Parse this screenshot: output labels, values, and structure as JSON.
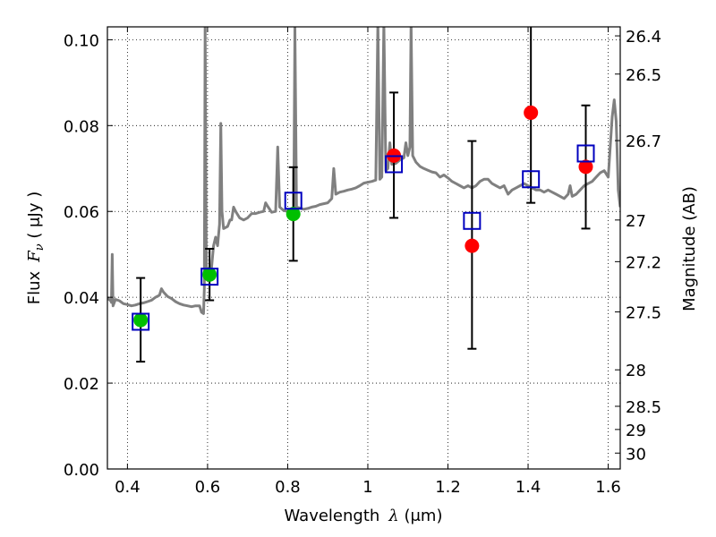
{
  "chart_data": {
    "type": "scatter",
    "title": "",
    "xlabel": "Wavelength",
    "xlabel_math": "λ",
    "xlabel_unit": " (μm)",
    "ylabel": "Flux",
    "ylabel_math": "F",
    "ylabel_sub": "ν",
    "ylabel_unit": " ( μJy )",
    "ylabel_right": "Magnitude (AB)",
    "xlim": [
      0.35,
      1.63
    ],
    "ylim": [
      0.0,
      0.103
    ],
    "xticks": [
      0.4,
      0.6,
      0.8,
      1.0,
      1.2,
      1.4,
      1.6
    ],
    "xtick_labels": [
      "0.4",
      "0.6",
      "0.8",
      "1",
      "1.2",
      "1.4",
      "1.6"
    ],
    "yticks": [
      0.0,
      0.02,
      0.04,
      0.06,
      0.08,
      0.1
    ],
    "ytick_labels": [
      "0.00",
      "0.02",
      "0.04",
      "0.06",
      "0.08",
      "0.10"
    ],
    "right_ticks": [
      {
        "label": "26.4",
        "flux": 0.1009
      },
      {
        "label": "26.5",
        "flux": 0.092
      },
      {
        "label": "26.7",
        "flux": 0.0765
      },
      {
        "label": "27",
        "flux": 0.058
      },
      {
        "label": "27.2",
        "flux": 0.0483
      },
      {
        "label": "27.5",
        "flux": 0.0366
      },
      {
        "label": "28",
        "flux": 0.0231
      },
      {
        "label": "28.5",
        "flux": 0.0146
      },
      {
        "label": "29",
        "flux": 0.0092
      },
      {
        "label": "30",
        "flux": 0.0037
      }
    ],
    "grid": true,
    "colors": {
      "template": "#808080",
      "green": "#00bf00",
      "red": "#ff0000",
      "model": "#0000bf",
      "errorbar": "#000000"
    },
    "template_spectrum": [
      [
        0.35,
        0.04
      ],
      [
        0.354,
        0.0395
      ],
      [
        0.358,
        0.0392
      ],
      [
        0.36,
        0.0388
      ],
      [
        0.362,
        0.05
      ],
      [
        0.364,
        0.038
      ],
      [
        0.37,
        0.0395
      ],
      [
        0.38,
        0.0392
      ],
      [
        0.39,
        0.0385
      ],
      [
        0.4,
        0.0383
      ],
      [
        0.41,
        0.038
      ],
      [
        0.42,
        0.0382
      ],
      [
        0.43,
        0.0385
      ],
      [
        0.44,
        0.0387
      ],
      [
        0.45,
        0.039
      ],
      [
        0.46,
        0.0393
      ],
      [
        0.47,
        0.04
      ],
      [
        0.48,
        0.0405
      ],
      [
        0.485,
        0.042
      ],
      [
        0.49,
        0.0412
      ],
      [
        0.5,
        0.0402
      ],
      [
        0.51,
        0.0397
      ],
      [
        0.52,
        0.039
      ],
      [
        0.53,
        0.0385
      ],
      [
        0.54,
        0.0382
      ],
      [
        0.55,
        0.038
      ],
      [
        0.56,
        0.0378
      ],
      [
        0.57,
        0.038
      ],
      [
        0.58,
        0.038
      ],
      [
        0.585,
        0.0365
      ],
      [
        0.59,
        0.0362
      ],
      [
        0.592,
        0.042
      ],
      [
        0.594,
        0.104
      ],
      [
        0.597,
        0.045
      ],
      [
        0.6,
        0.045
      ],
      [
        0.61,
        0.047
      ],
      [
        0.615,
        0.052
      ],
      [
        0.62,
        0.054
      ],
      [
        0.625,
        0.052
      ],
      [
        0.63,
        0.057
      ],
      [
        0.633,
        0.0805
      ],
      [
        0.636,
        0.06
      ],
      [
        0.64,
        0.056
      ],
      [
        0.65,
        0.0565
      ],
      [
        0.656,
        0.058
      ],
      [
        0.66,
        0.058
      ],
      [
        0.665,
        0.061
      ],
      [
        0.67,
        0.06
      ],
      [
        0.68,
        0.0585
      ],
      [
        0.69,
        0.058
      ],
      [
        0.7,
        0.0585
      ],
      [
        0.71,
        0.0595
      ],
      [
        0.72,
        0.0595
      ],
      [
        0.73,
        0.0598
      ],
      [
        0.74,
        0.06
      ],
      [
        0.745,
        0.062
      ],
      [
        0.75,
        0.0612
      ],
      [
        0.76,
        0.0598
      ],
      [
        0.77,
        0.06
      ],
      [
        0.775,
        0.075
      ],
      [
        0.78,
        0.061
      ],
      [
        0.79,
        0.0602
      ],
      [
        0.8,
        0.06
      ],
      [
        0.81,
        0.0604
      ],
      [
        0.815,
        0.0604
      ],
      [
        0.818,
        0.103
      ],
      [
        0.822,
        0.061
      ],
      [
        0.83,
        0.0608
      ],
      [
        0.84,
        0.0605
      ],
      [
        0.85,
        0.0607
      ],
      [
        0.86,
        0.061
      ],
      [
        0.87,
        0.0612
      ],
      [
        0.88,
        0.0616
      ],
      [
        0.89,
        0.0618
      ],
      [
        0.9,
        0.062
      ],
      [
        0.91,
        0.063
      ],
      [
        0.915,
        0.07
      ],
      [
        0.92,
        0.064
      ],
      [
        0.93,
        0.0645
      ],
      [
        0.94,
        0.0647
      ],
      [
        0.95,
        0.065
      ],
      [
        0.96,
        0.0652
      ],
      [
        0.97,
        0.0655
      ],
      [
        0.98,
        0.066
      ],
      [
        0.99,
        0.0666
      ],
      [
        1.0,
        0.0668
      ],
      [
        1.01,
        0.067
      ],
      [
        1.02,
        0.0673
      ],
      [
        1.025,
        0.104
      ],
      [
        1.03,
        0.0675
      ],
      [
        1.035,
        0.068
      ],
      [
        1.04,
        0.104
      ],
      [
        1.045,
        0.0695
      ],
      [
        1.05,
        0.07
      ],
      [
        1.055,
        0.076
      ],
      [
        1.06,
        0.071
      ],
      [
        1.07,
        0.0712
      ],
      [
        1.08,
        0.072
      ],
      [
        1.09,
        0.0725
      ],
      [
        1.095,
        0.076
      ],
      [
        1.1,
        0.073
      ],
      [
        1.105,
        0.075
      ],
      [
        1.108,
        0.104
      ],
      [
        1.112,
        0.073
      ],
      [
        1.12,
        0.0715
      ],
      [
        1.13,
        0.0705
      ],
      [
        1.14,
        0.07
      ],
      [
        1.15,
        0.0696
      ],
      [
        1.16,
        0.0692
      ],
      [
        1.17,
        0.069
      ],
      [
        1.18,
        0.068
      ],
      [
        1.19,
        0.0685
      ],
      [
        1.2,
        0.0678
      ],
      [
        1.21,
        0.067
      ],
      [
        1.22,
        0.0665
      ],
      [
        1.23,
        0.066
      ],
      [
        1.24,
        0.0655
      ],
      [
        1.25,
        0.066
      ],
      [
        1.26,
        0.0655
      ],
      [
        1.27,
        0.066
      ],
      [
        1.28,
        0.067
      ],
      [
        1.29,
        0.0675
      ],
      [
        1.3,
        0.0675
      ],
      [
        1.31,
        0.0665
      ],
      [
        1.32,
        0.066
      ],
      [
        1.33,
        0.0655
      ],
      [
        1.34,
        0.066
      ],
      [
        1.35,
        0.064
      ],
      [
        1.36,
        0.065
      ],
      [
        1.37,
        0.0655
      ],
      [
        1.38,
        0.066
      ],
      [
        1.39,
        0.0665
      ],
      [
        1.4,
        0.066
      ],
      [
        1.41,
        0.0655
      ],
      [
        1.42,
        0.065
      ],
      [
        1.43,
        0.065
      ],
      [
        1.44,
        0.0645
      ],
      [
        1.45,
        0.065
      ],
      [
        1.46,
        0.0645
      ],
      [
        1.47,
        0.064
      ],
      [
        1.48,
        0.0635
      ],
      [
        1.49,
        0.063
      ],
      [
        1.5,
        0.064
      ],
      [
        1.505,
        0.066
      ],
      [
        1.51,
        0.0635
      ],
      [
        1.52,
        0.064
      ],
      [
        1.53,
        0.065
      ],
      [
        1.54,
        0.066
      ],
      [
        1.55,
        0.0665
      ],
      [
        1.56,
        0.067
      ],
      [
        1.57,
        0.068
      ],
      [
        1.58,
        0.069
      ],
      [
        1.59,
        0.0695
      ],
      [
        1.6,
        0.068
      ],
      [
        1.605,
        0.075
      ],
      [
        1.61,
        0.082
      ],
      [
        1.615,
        0.086
      ],
      [
        1.62,
        0.081
      ],
      [
        1.625,
        0.065
      ],
      [
        1.63,
        0.061
      ]
    ],
    "green_points": [
      {
        "x": 0.433,
        "y": 0.0347
      },
      {
        "x": 0.605,
        "y": 0.0453
      },
      {
        "x": 0.814,
        "y": 0.0594
      }
    ],
    "red_points": [
      {
        "x": 1.065,
        "y": 0.073
      },
      {
        "x": 1.26,
        "y": 0.052
      },
      {
        "x": 1.407,
        "y": 0.083
      },
      {
        "x": 1.544,
        "y": 0.0704
      }
    ],
    "errorbars": [
      {
        "x": 0.433,
        "low": 0.025,
        "high": 0.0445
      },
      {
        "x": 0.605,
        "low": 0.0393,
        "high": 0.0513
      },
      {
        "x": 0.814,
        "low": 0.0485,
        "high": 0.0703
      },
      {
        "x": 1.065,
        "low": 0.0585,
        "high": 0.0877
      },
      {
        "x": 1.26,
        "low": 0.028,
        "high": 0.0764
      },
      {
        "x": 1.407,
        "low": 0.062,
        "high": 0.104
      },
      {
        "x": 1.544,
        "low": 0.056,
        "high": 0.0847
      }
    ],
    "model_points": [
      {
        "x": 0.433,
        "y": 0.0343
      },
      {
        "x": 0.605,
        "y": 0.0448
      },
      {
        "x": 0.814,
        "y": 0.0625
      },
      {
        "x": 1.065,
        "y": 0.071
      },
      {
        "x": 1.26,
        "y": 0.0578
      },
      {
        "x": 1.407,
        "y": 0.0675
      },
      {
        "x": 1.544,
        "y": 0.0735
      }
    ]
  }
}
